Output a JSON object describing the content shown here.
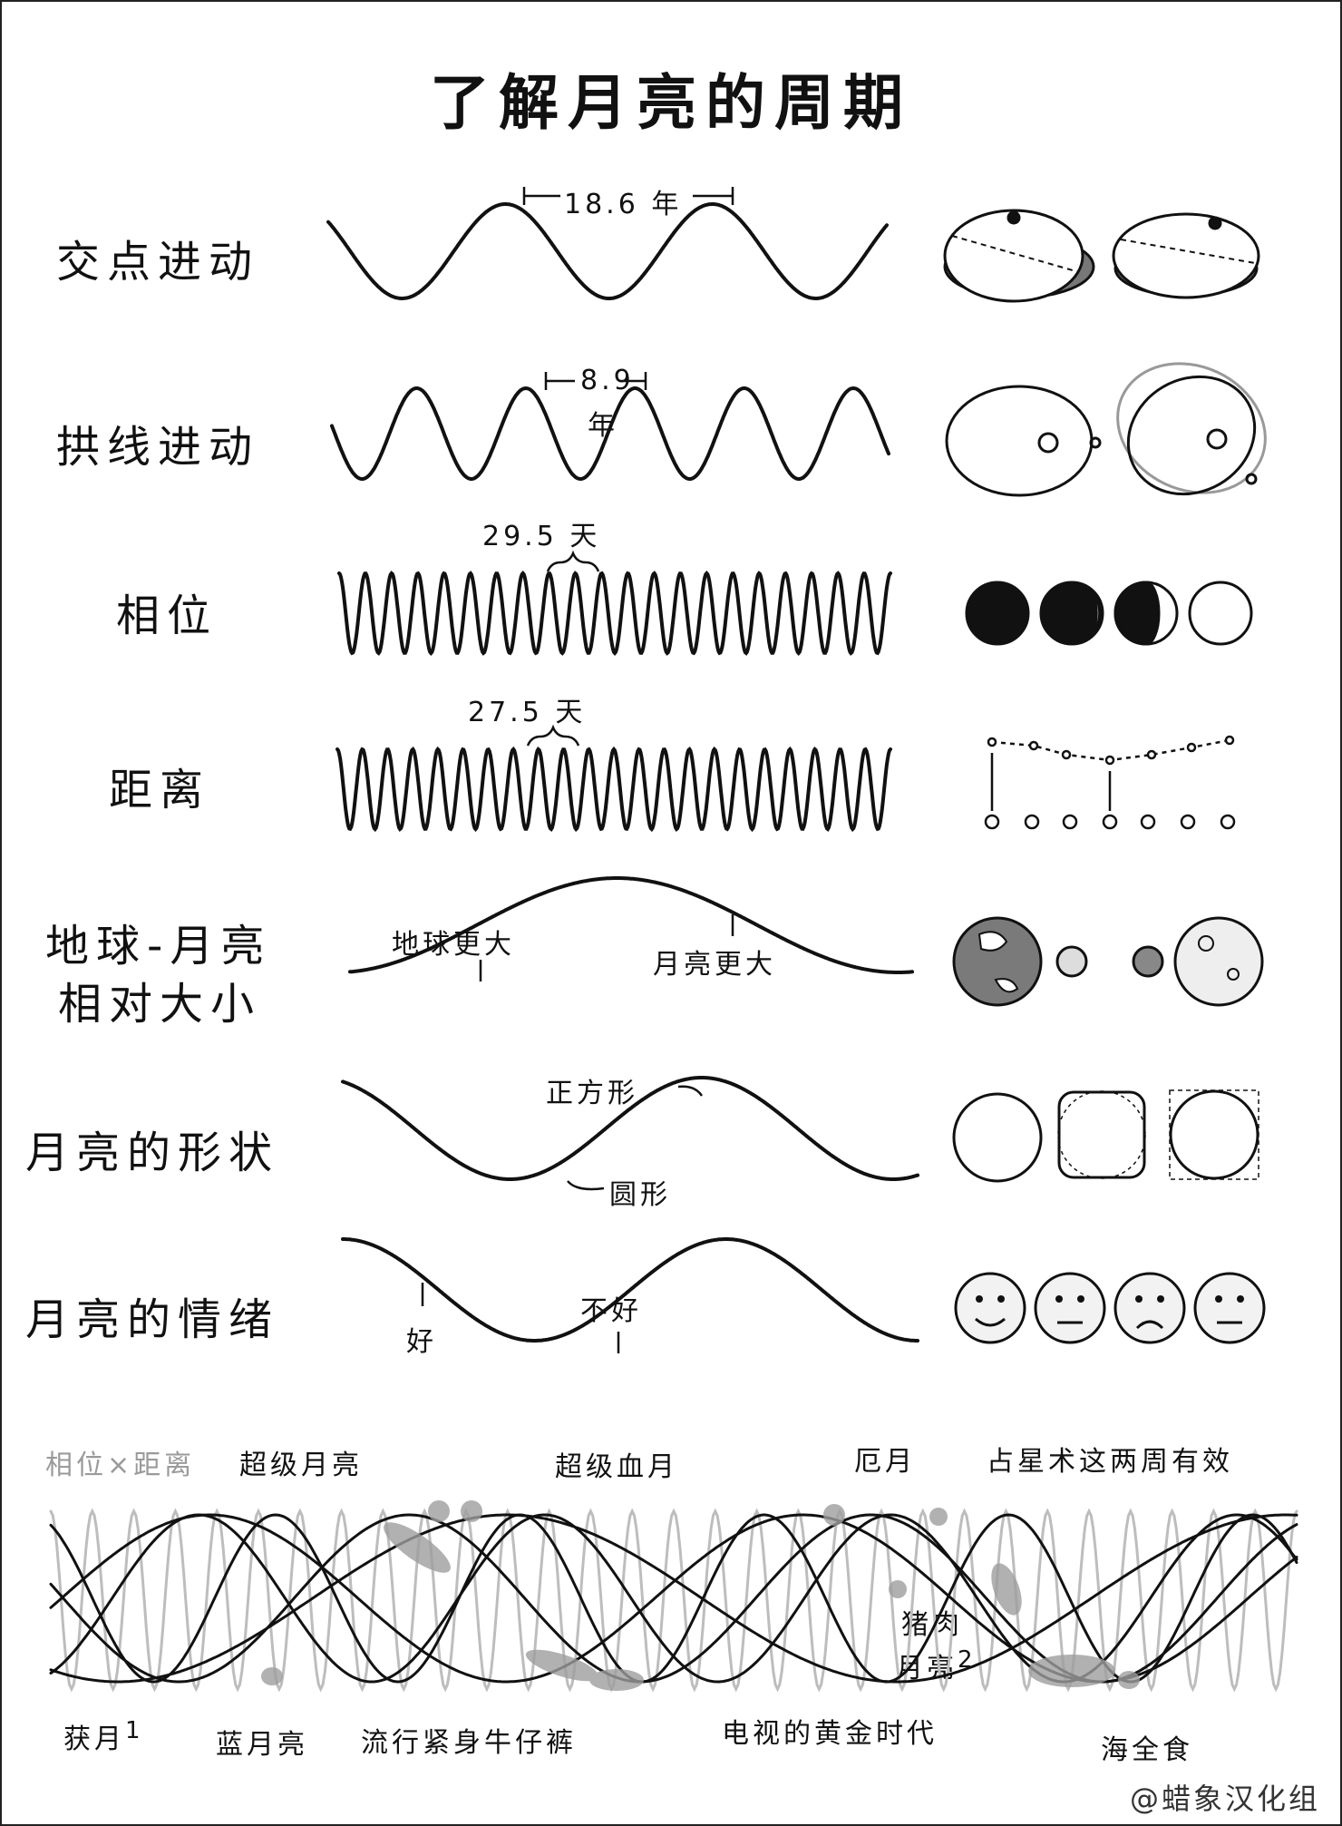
{
  "title": "了解月亮的周期",
  "rows": [
    {
      "label": "交点进动",
      "note": "18.6 年"
    },
    {
      "label": "拱线进动",
      "note_num": "8.9",
      "note_unit": "年"
    },
    {
      "label": "相位",
      "note": "29.5 天"
    },
    {
      "label": "距离",
      "note": "27.5 天"
    },
    {
      "label_lines": [
        "地球-月亮",
        "相对大小"
      ],
      "note_low": "地球更大",
      "note_high": "月亮更大"
    },
    {
      "label": "月亮的形状",
      "note_high": "正方形",
      "note_low": "圆形"
    },
    {
      "label": "月亮的情绪",
      "note_high": "好",
      "note_low": "不好"
    }
  ],
  "combined": {
    "label": "相位×距离",
    "annotations": {
      "supermoon": "超级月亮",
      "super_blood_moon": "超级血月",
      "unlucky_moon": "厄月",
      "astrology": "占星术这两周有效",
      "harvest_moon": "获月",
      "harvest_sup": "1",
      "blue_moon": "蓝月亮",
      "skinny_jeans": "流行紧身牛仔裤",
      "golden_age_tv": "电视的黄金时代",
      "pork_moon_1": "猪肉",
      "pork_moon_2": "月亮",
      "pork_sup": "2",
      "sea_eclipse": "海全食"
    }
  },
  "credit": "@蜡象汉化组"
}
